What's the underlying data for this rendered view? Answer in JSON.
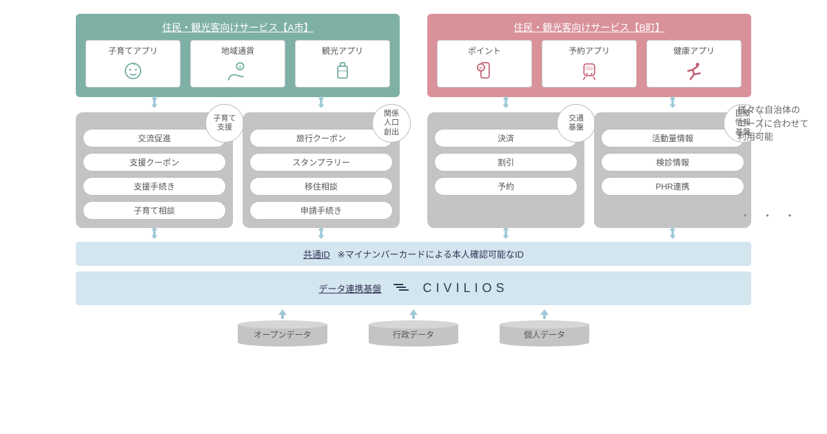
{
  "colors": {
    "panelA": "#7fb0a6",
    "panelB": "#d9919a",
    "iconA": "#6aa79c",
    "iconB": "#c35b71",
    "grey": "#c4c4c4",
    "barBlue": "#d3e5ef",
    "arrow": "#9ec8d8",
    "text": "#555555",
    "brand": "#2a3b52"
  },
  "fontsizes": {
    "panelTitle": 14,
    "appLabel": 12,
    "item": 12,
    "bar": 13,
    "note": 13,
    "brand": 18,
    "cyl": 12,
    "badge": 11
  },
  "panelA": {
    "title": "住民・観光客向けサービス【A市】",
    "apps": [
      {
        "label": "子育てアプリ",
        "icon": "baby"
      },
      {
        "label": "地域通貨",
        "icon": "coin-hand"
      },
      {
        "label": "観光アプリ",
        "icon": "suitcase"
      }
    ]
  },
  "panelB": {
    "title": "住民・観光客向けサービス【B町】",
    "apps": [
      {
        "label": "ポイント",
        "icon": "point-phone"
      },
      {
        "label": "予約アプリ",
        "icon": "train"
      },
      {
        "label": "健康アプリ",
        "icon": "runner"
      }
    ]
  },
  "features": [
    {
      "badge": "子育て\n支援",
      "items": [
        "交流促進",
        "支援クーポン",
        "支援手続き",
        "子育て相談"
      ]
    },
    {
      "badge": "関係\n人口\n創出",
      "items": [
        "旅行クーポン",
        "スタンプラリー",
        "移住相談",
        "申請手続き"
      ]
    },
    {
      "badge": "交通\n基盤",
      "items": [
        "決済",
        "割引",
        "予約"
      ]
    },
    {
      "badge": "医療\n情報\n基盤",
      "items": [
        "活動量情報",
        "検診情報",
        "PHR連携"
      ]
    }
  ],
  "commonId": {
    "label": "共通ID",
    "note": "※マイナンバーカードによる本人確認可能なID"
  },
  "platform": {
    "label": "データ連携基盤",
    "brand": "CIVILIOS"
  },
  "cylinders": [
    "オープンデータ",
    "行政データ",
    "個人データ"
  ],
  "sideNote": "様々な自治体の\nニーズに合わせて\n利用可能",
  "dots": "・ ・ ・"
}
